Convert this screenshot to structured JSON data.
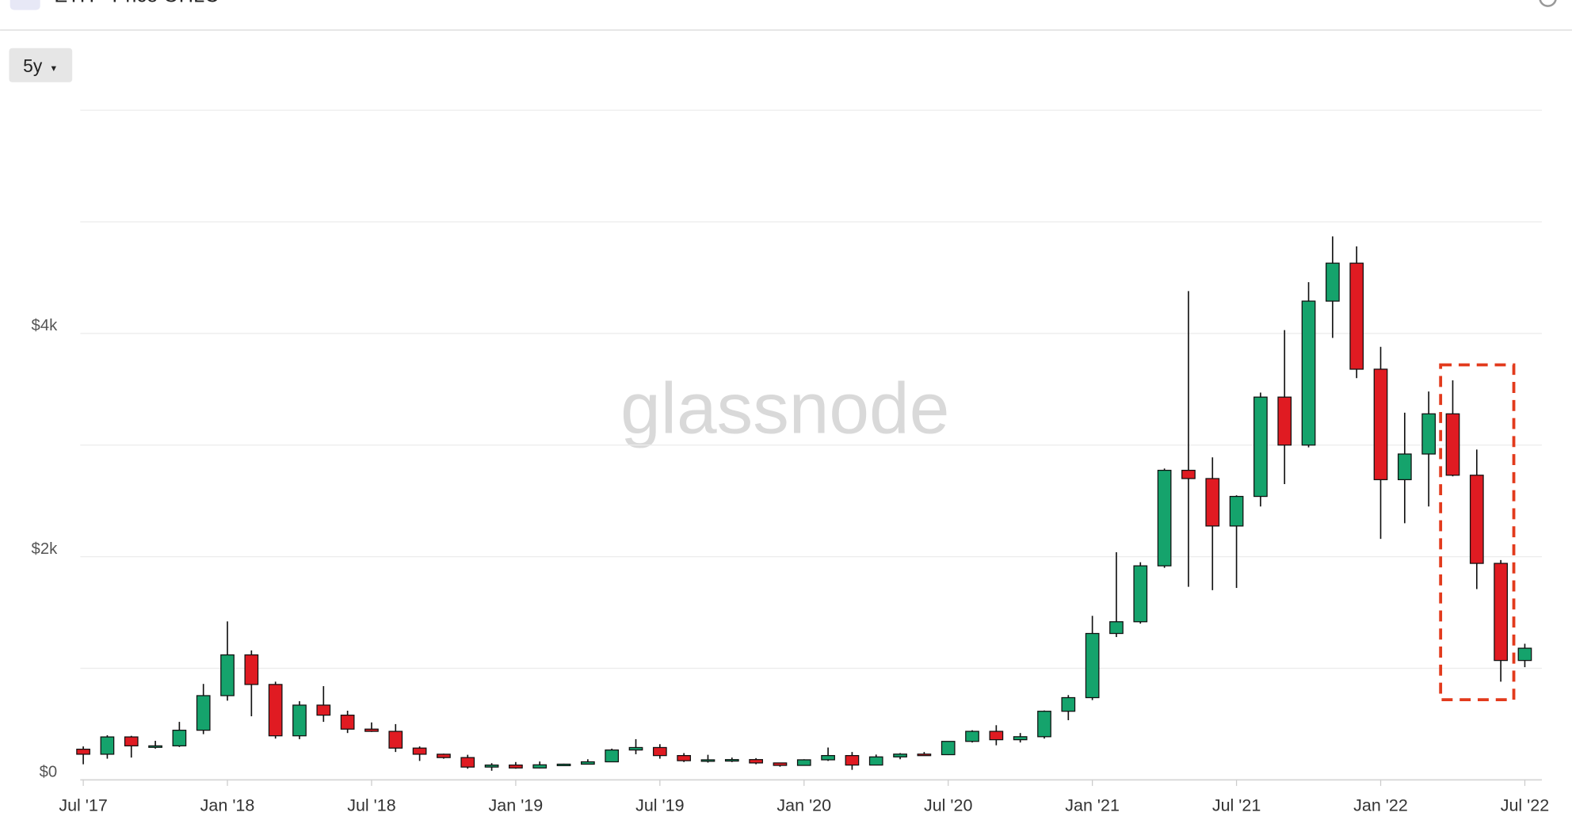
{
  "header": {
    "title": "ETH - Price OHLC"
  },
  "range_button": "5y",
  "chart_data": {
    "type": "candlestick",
    "watermark": "glassnode",
    "categories": [
      "Jul '17",
      null,
      null,
      null,
      null,
      null,
      "Jan '18",
      null,
      null,
      null,
      null,
      null,
      "Jul '18",
      null,
      null,
      null,
      null,
      null,
      "Jan '19",
      null,
      null,
      null,
      null,
      null,
      "Jul '19",
      null,
      null,
      null,
      null,
      null,
      "Jan '20",
      null,
      null,
      null,
      null,
      null,
      "Jul '20",
      null,
      null,
      null,
      null,
      null,
      "Jan '21",
      null,
      null,
      null,
      null,
      null,
      "Jul '21",
      null,
      null,
      null,
      null,
      null,
      "Jan '22",
      null,
      null,
      null,
      null,
      null,
      "Jul '22"
    ],
    "open": [
      275,
      230,
      385,
      302,
      305,
      445,
      755,
      1120,
      855,
      395,
      670,
      580,
      455,
      435,
      285,
      230,
      200,
      115,
      133,
      107,
      135,
      141,
      162,
      268,
      290,
      218,
      172,
      180,
      182,
      152,
      130,
      180,
      218,
      133,
      206,
      231,
      226,
      345,
      435,
      360,
      387,
      615,
      737,
      1312,
      1417,
      1918,
      2774,
      2700,
      2275,
      2540,
      3430,
      3000,
      4290,
      4630,
      3680,
      2690,
      2920,
      3280,
      2730,
      1940,
      1070
    ],
    "high": [
      300,
      400,
      395,
      350,
      520,
      860,
      1420,
      1160,
      880,
      705,
      840,
      620,
      515,
      500,
      300,
      235,
      225,
      150,
      160,
      165,
      145,
      185,
      280,
      365,
      320,
      240,
      225,
      200,
      195,
      155,
      185,
      290,
      250,
      227,
      240,
      250,
      345,
      445,
      490,
      420,
      622,
      760,
      1470,
      2040,
      1950,
      2790,
      4380,
      2890,
      2550,
      3470,
      4030,
      4460,
      4870,
      4780,
      3880,
      3290,
      3480,
      3580,
      2960,
      1970,
      1220
    ],
    "low": [
      140,
      190,
      200,
      280,
      295,
      410,
      710,
      570,
      370,
      365,
      520,
      420,
      430,
      250,
      170,
      190,
      100,
      82,
      100,
      103,
      125,
      140,
      160,
      230,
      190,
      160,
      155,
      160,
      140,
      118,
      127,
      170,
      90,
      130,
      185,
      216,
      222,
      335,
      310,
      335,
      370,
      535,
      715,
      1280,
      1400,
      1900,
      1730,
      1700,
      1720,
      2450,
      2650,
      2980,
      3960,
      3600,
      2160,
      2300,
      2450,
      2720,
      1710,
      880,
      1010
    ],
    "close": [
      230,
      385,
      305,
      305,
      445,
      755,
      1120,
      855,
      395,
      670,
      580,
      455,
      435,
      285,
      230,
      200,
      115,
      133,
      107,
      135,
      141,
      162,
      268,
      290,
      218,
      172,
      180,
      182,
      152,
      130,
      180,
      218,
      133,
      206,
      231,
      226,
      345,
      435,
      360,
      387,
      615,
      737,
      1312,
      1417,
      1918,
      2774,
      2700,
      2275,
      2540,
      3430,
      3000,
      4290,
      4630,
      3680,
      2690,
      2920,
      3280,
      2730,
      1940,
      1070,
      1180
    ],
    "up_color": "#15a36c",
    "down_color": "#e01b22",
    "ylim": [
      0,
      6000
    ],
    "yticks": [
      {
        "value": 0,
        "label": "$0"
      },
      {
        "value": 1000,
        "label": null
      },
      {
        "value": 2000,
        "label": "$2k"
      },
      {
        "value": 3000,
        "label": null
      },
      {
        "value": 4000,
        "label": "$4k"
      },
      {
        "value": 5000,
        "label": null
      },
      {
        "value": 6000,
        "label": null
      }
    ],
    "grid": true
  }
}
